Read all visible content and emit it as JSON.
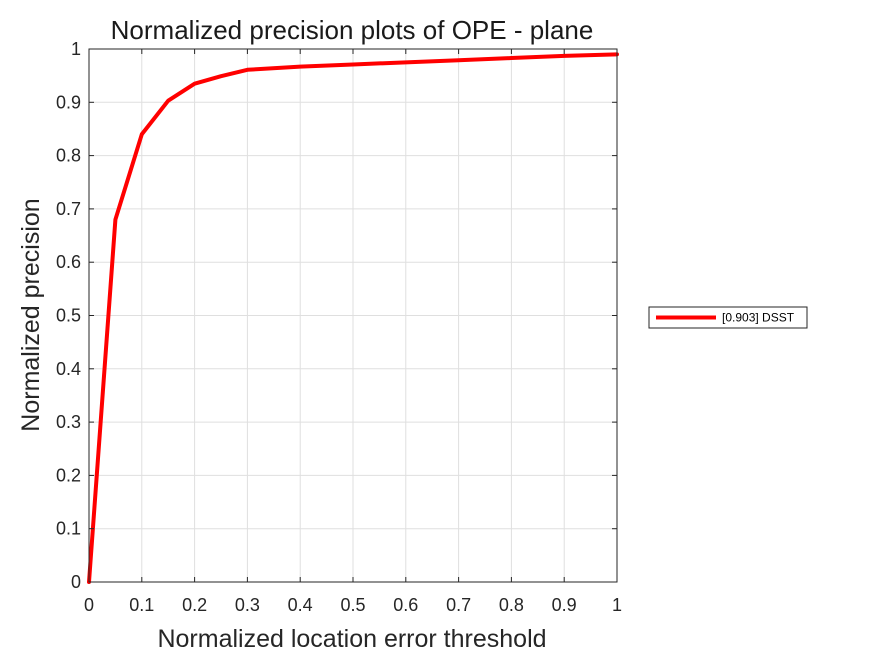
{
  "chart_data": {
    "type": "line",
    "title": "Normalized precision plots of OPE - plane",
    "xlabel": "Normalized location error threshold",
    "ylabel": "Normalized precision",
    "xlim": [
      0,
      1
    ],
    "ylim": [
      0,
      1
    ],
    "xticks": [
      "0",
      "0.1",
      "0.2",
      "0.3",
      "0.4",
      "0.5",
      "0.6",
      "0.7",
      "0.8",
      "0.9",
      "1"
    ],
    "yticks": [
      "0",
      "0.1",
      "0.2",
      "0.3",
      "0.4",
      "0.5",
      "0.6",
      "0.7",
      "0.8",
      "0.9",
      "1"
    ],
    "grid": true,
    "legend": {
      "placement": "outside-right",
      "entries": [
        "[0.903] DSST"
      ]
    },
    "series": [
      {
        "name": "[0.903] DSST",
        "color": "#ff0000",
        "x": [
          0,
          0.05,
          0.1,
          0.15,
          0.2,
          0.25,
          0.3,
          0.4,
          0.5,
          0.6,
          0.7,
          0.8,
          0.9,
          1.0
        ],
        "y": [
          0,
          0.68,
          0.84,
          0.903,
          0.935,
          0.949,
          0.961,
          0.967,
          0.971,
          0.975,
          0.979,
          0.983,
          0.987,
          0.99
        ]
      }
    ]
  }
}
